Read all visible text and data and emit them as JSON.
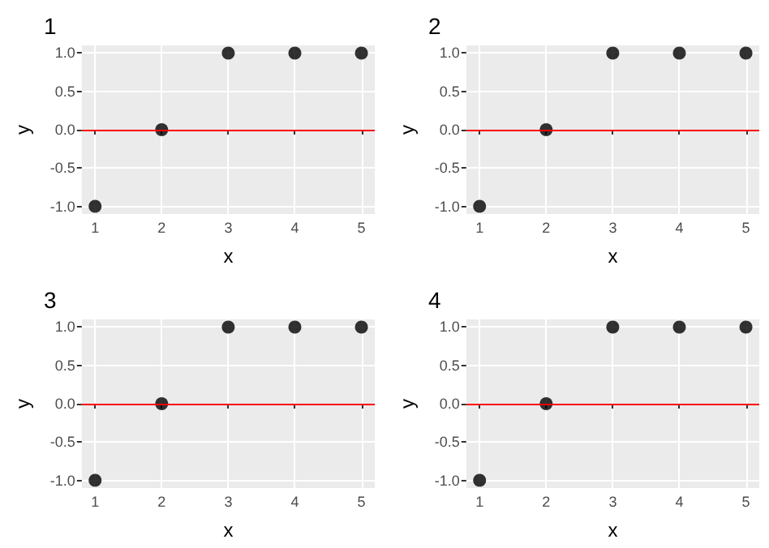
{
  "chart_data": [
    {
      "type": "scatter",
      "title": "1",
      "xlabel": "x",
      "ylabel": "y",
      "x": [
        1,
        2,
        3,
        4,
        5
      ],
      "values": [
        -1,
        0,
        1,
        1,
        1
      ],
      "color": "#000000",
      "marker": "circle",
      "xlim": [
        0.8,
        5.2
      ],
      "ylim": [
        -1.1,
        1.1
      ],
      "xticks": [
        1,
        2,
        3,
        4,
        5
      ],
      "yticks": [
        {
          "value": -1,
          "label": "-1.0"
        },
        {
          "value": -0.5,
          "label": "-0.5"
        },
        {
          "value": 0,
          "label": "0.0"
        },
        {
          "value": 0.5,
          "label": "0.5"
        },
        {
          "value": 1,
          "label": "1.0"
        }
      ],
      "grid": true,
      "ref_lines": [
        {
          "axis": "y",
          "value": 0,
          "color": "#ff0000"
        }
      ]
    },
    {
      "type": "scatter",
      "title": "2",
      "xlabel": "x",
      "ylabel": "y",
      "x": [
        1,
        2,
        3,
        4,
        5
      ],
      "values": [
        -1,
        0,
        1,
        1,
        1
      ],
      "color": "#000000",
      "marker": "circle",
      "xlim": [
        0.8,
        5.2
      ],
      "ylim": [
        -1.1,
        1.1
      ],
      "xticks": [
        1,
        2,
        3,
        4,
        5
      ],
      "yticks": [
        {
          "value": -1,
          "label": "-1.0"
        },
        {
          "value": -0.5,
          "label": "-0.5"
        },
        {
          "value": 0,
          "label": "0.0"
        },
        {
          "value": 0.5,
          "label": "0.5"
        },
        {
          "value": 1,
          "label": "1.0"
        }
      ],
      "grid": true,
      "ref_lines": [
        {
          "axis": "y",
          "value": 0,
          "color": "#ff0000"
        }
      ]
    },
    {
      "type": "scatter",
      "title": "3",
      "xlabel": "x",
      "ylabel": "y",
      "x": [
        1,
        2,
        3,
        4,
        5
      ],
      "values": [
        -1,
        0,
        1,
        1,
        1
      ],
      "color": "#000000",
      "marker": "circle",
      "xlim": [
        0.8,
        5.2
      ],
      "ylim": [
        -1.1,
        1.1
      ],
      "xticks": [
        1,
        2,
        3,
        4,
        5
      ],
      "yticks": [
        {
          "value": -1,
          "label": "-1.0"
        },
        {
          "value": -0.5,
          "label": "-0.5"
        },
        {
          "value": 0,
          "label": "0.0"
        },
        {
          "value": 0.5,
          "label": "0.5"
        },
        {
          "value": 1,
          "label": "1.0"
        }
      ],
      "grid": true,
      "ref_lines": [
        {
          "axis": "y",
          "value": 0,
          "color": "#ff0000"
        }
      ]
    },
    {
      "type": "scatter",
      "title": "4",
      "xlabel": "x",
      "ylabel": "y",
      "x": [
        1,
        2,
        3,
        4,
        5
      ],
      "values": [
        -1,
        0,
        1,
        1,
        1
      ],
      "color": "#000000",
      "marker": "circle",
      "xlim": [
        0.8,
        5.2
      ],
      "ylim": [
        -1.1,
        1.1
      ],
      "xticks": [
        1,
        2,
        3,
        4,
        5
      ],
      "yticks": [
        {
          "value": -1,
          "label": "-1.0"
        },
        {
          "value": -0.5,
          "label": "-0.5"
        },
        {
          "value": 0,
          "label": "0.0"
        },
        {
          "value": 0.5,
          "label": "0.5"
        },
        {
          "value": 1,
          "label": "1.0"
        }
      ],
      "grid": true,
      "ref_lines": [
        {
          "axis": "y",
          "value": 0,
          "color": "#ff0000"
        }
      ]
    }
  ]
}
